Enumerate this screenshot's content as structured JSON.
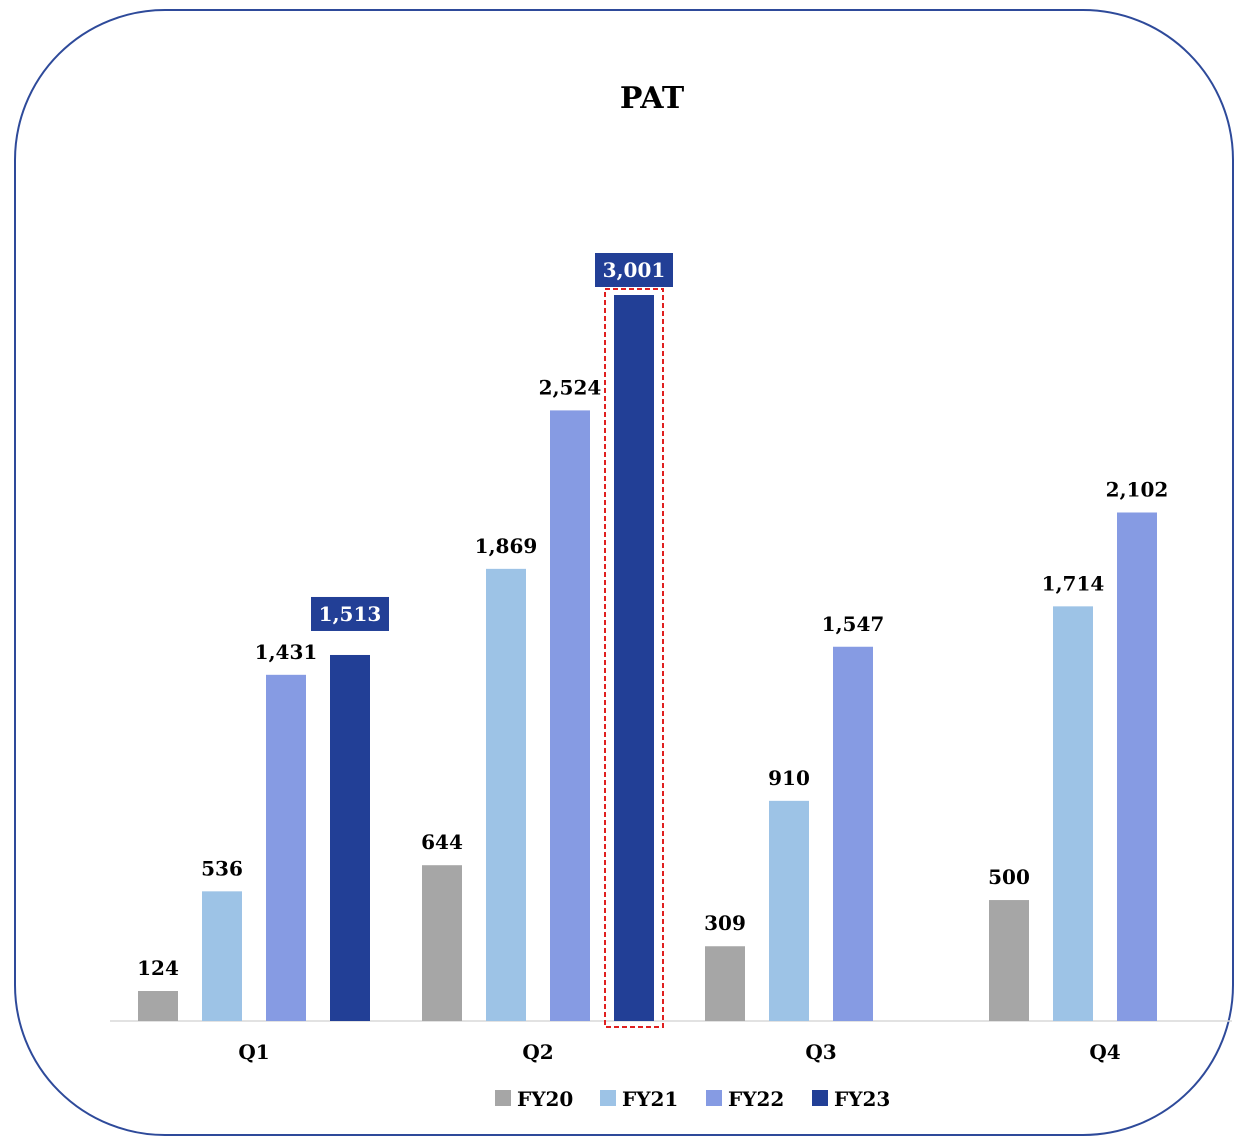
{
  "chart_data": {
    "type": "bar",
    "title": "PAT",
    "xlabel": "",
    "ylabel": "",
    "categories": [
      "Q1",
      "Q2",
      "Q3",
      "Q4"
    ],
    "series": [
      {
        "name": "FY20",
        "color": "#a6a6a6",
        "values": [
          124,
          644,
          309,
          500
        ],
        "labels": [
          "124",
          "644",
          "309",
          "500"
        ]
      },
      {
        "name": "FY21",
        "color": "#9dc3e6",
        "values": [
          536,
          1869,
          910,
          1714
        ],
        "labels": [
          "536",
          "1,869",
          "910",
          "1,714"
        ]
      },
      {
        "name": "FY22",
        "color": "#869be3",
        "values": [
          1431,
          2524,
          1547,
          2102
        ],
        "labels": [
          "1,431",
          "2,524",
          "1,547",
          "2,102"
        ]
      },
      {
        "name": "FY23",
        "color": "#223f96",
        "values": [
          1513,
          3001,
          null,
          null
        ],
        "labels": [
          "1,513",
          "3,001",
          "",
          ""
        ]
      }
    ],
    "ylim": [
      0,
      3001
    ],
    "grid": false,
    "highlighted_labels_series": "FY23",
    "highlighted_bar": {
      "series": "FY23",
      "category": "Q2",
      "outline_color": "#e02020"
    },
    "legend_position": "bottom",
    "frame_color": "#2e4a9a"
  }
}
